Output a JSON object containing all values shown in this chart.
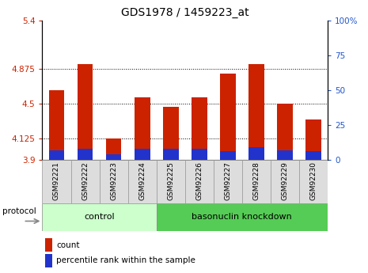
{
  "title": "GDS1978 / 1459223_at",
  "categories": [
    "GSM92221",
    "GSM92222",
    "GSM92223",
    "GSM92224",
    "GSM92225",
    "GSM92226",
    "GSM92227",
    "GSM92228",
    "GSM92229",
    "GSM92230"
  ],
  "count_values": [
    4.65,
    4.93,
    4.13,
    4.57,
    4.47,
    4.57,
    4.83,
    4.93,
    4.5,
    4.33
  ],
  "percentile_values": [
    7,
    8,
    4,
    8,
    8,
    8,
    6,
    9,
    7,
    6
  ],
  "ylim_left": [
    3.9,
    5.4
  ],
  "ylim_right": [
    0,
    100
  ],
  "yticks_left": [
    3.9,
    4.125,
    4.5,
    4.875,
    5.4
  ],
  "yticks_right": [
    0,
    25,
    50,
    75,
    100
  ],
  "ytick_labels_left": [
    "3.9",
    "4.125",
    "4.5",
    "4.875",
    "5.4"
  ],
  "ytick_labels_right": [
    "0",
    "25",
    "50",
    "75",
    "100%"
  ],
  "grid_yticks": [
    4.125,
    4.5,
    4.875
  ],
  "bar_width": 0.55,
  "count_color": "#cc2200",
  "percentile_color": "#2233cc",
  "control_group": [
    "GSM92221",
    "GSM92222",
    "GSM92223",
    "GSM92224"
  ],
  "knockdown_group": [
    "GSM92225",
    "GSM92226",
    "GSM92227",
    "GSM92228",
    "GSM92229",
    "GSM92230"
  ],
  "control_label": "control",
  "knockdown_label": "basonuclin knockdown",
  "protocol_label": "protocol",
  "group_bg_control": "#ccffcc",
  "group_bg_knockdown": "#55cc55",
  "tick_label_color_left": "#cc2200",
  "tick_label_color_right": "#2255cc",
  "legend_count_label": "count",
  "legend_percentile_label": "percentile rank within the sample",
  "title_fontsize": 10,
  "axis_fontsize": 7.5,
  "legend_fontsize": 7.5,
  "sample_fontsize": 6.5
}
